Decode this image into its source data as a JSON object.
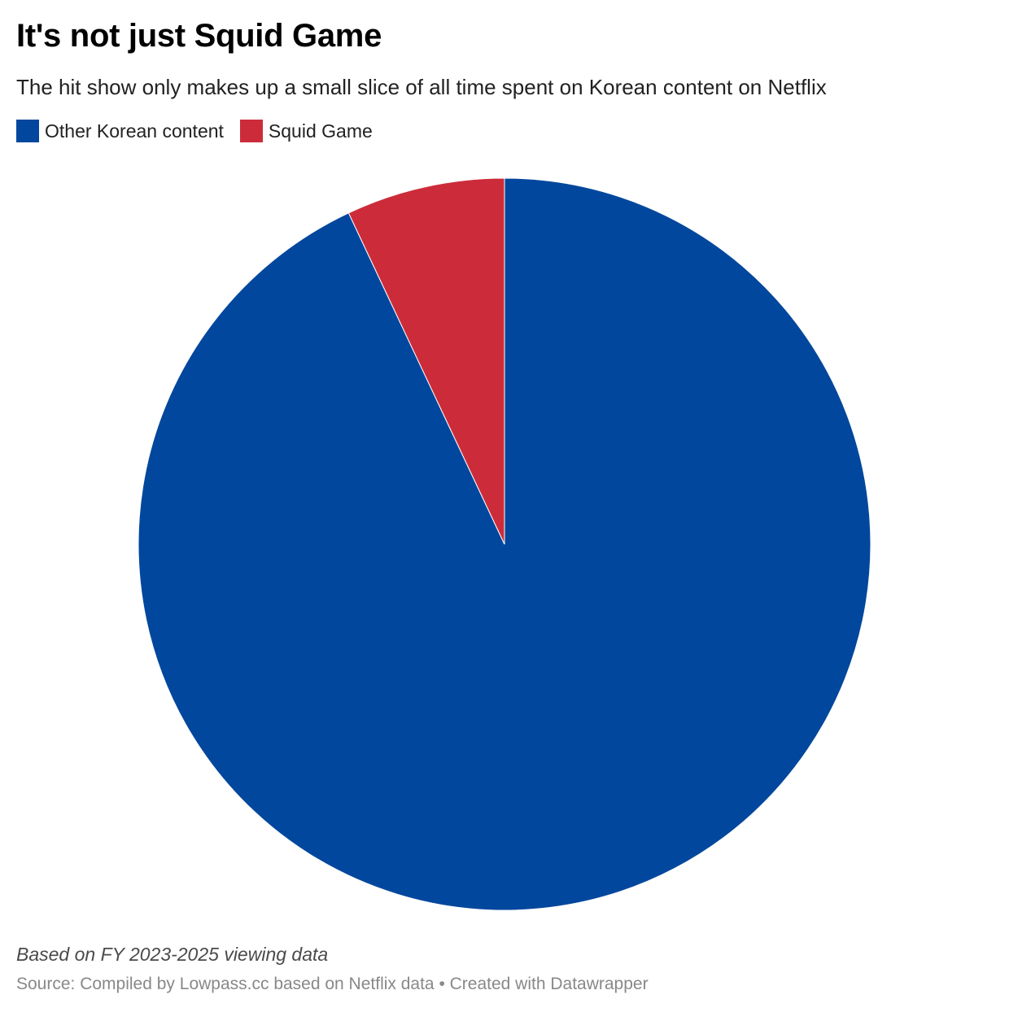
{
  "header": {
    "title": "It's not just Squid Game",
    "subtitle": "The hit show only makes up a small slice of all time spent on Korean content on Netflix"
  },
  "legend": {
    "items": [
      {
        "label": "Other Korean content",
        "color": "#01479d"
      },
      {
        "label": "Squid Game",
        "color": "#cc2c3a"
      }
    ]
  },
  "chart_data": {
    "type": "pie",
    "title": "It's not just Squid Game",
    "subtitle": "The hit show only makes up a small slice of all time spent on Korean content on Netflix",
    "slices": [
      {
        "label": "Other Korean content",
        "value": 93,
        "color": "#01479d"
      },
      {
        "label": "Squid Game",
        "value": 7,
        "color": "#cc2c3a"
      }
    ],
    "start_angle_deg": 0,
    "direction": "clockwise",
    "legend_position": "top-left"
  },
  "footer": {
    "note": "Based on FY 2023-2025 viewing data",
    "source": "Source: Compiled by Lowpass.cc based on Netflix data • Created with Datawrapper"
  }
}
